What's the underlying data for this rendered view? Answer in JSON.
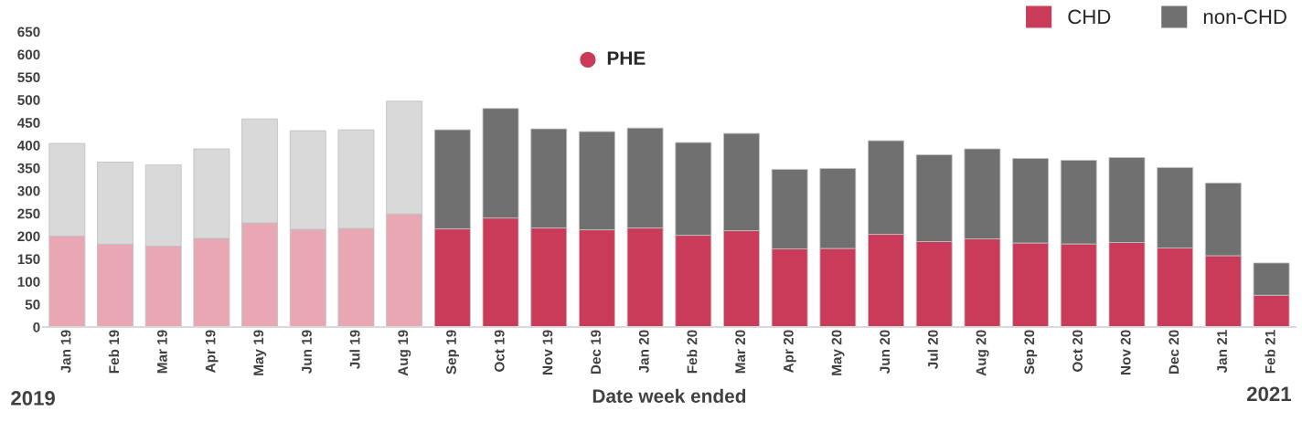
{
  "chart_data": {
    "type": "bar",
    "stacked": true,
    "xlabel": "Date week ended",
    "categories": [
      "Jan 19",
      "Feb 19",
      "Mar 19",
      "Apr 19",
      "May 19",
      "Jun 19",
      "Jul 19",
      "Aug 19",
      "Sep 19",
      "Oct 19",
      "Nov 19",
      "Dec 19",
      "Jan 20",
      "Feb 20",
      "Mar 20",
      "Apr 20",
      "May 20",
      "Jun 20",
      "Jul 20",
      "Aug 20",
      "Sep 20",
      "Oct 20",
      "Nov 20",
      "Dec 20",
      "Jan 21",
      "Feb 21"
    ],
    "series": [
      {
        "name": "CHD",
        "color": "#c93b58",
        "colors": [
          "#e8a7b2",
          "#e8a7b2",
          "#e8a7b2",
          "#e8a7b2",
          "#e8a7b2",
          "#e8a7b2",
          "#e8a7b2",
          "#e8a7b2",
          "#c93b58",
          "#c93b58",
          "#c93b58",
          "#c93b58",
          "#c93b58",
          "#c93b58",
          "#c93b58",
          "#c93b58",
          "#c93b58",
          "#c93b58",
          "#c93b58",
          "#c93b58",
          "#c93b58",
          "#c93b58",
          "#c93b58",
          "#c93b58",
          "#c93b58",
          "#c93b58"
        ],
        "values": [
          200,
          182,
          178,
          195,
          229,
          215,
          217,
          249,
          216,
          240,
          218,
          214,
          218,
          202,
          212,
          172,
          173,
          204,
          188,
          194,
          185,
          183,
          186,
          174,
          157,
          70
        ]
      },
      {
        "name": "non-CHD",
        "color": "#707070",
        "colors": [
          "#d9d9d9",
          "#d9d9d9",
          "#d9d9d9",
          "#d9d9d9",
          "#d9d9d9",
          "#d9d9d9",
          "#d9d9d9",
          "#d9d9d9",
          "#707070",
          "#707070",
          "#707070",
          "#707070",
          "#707070",
          "#707070",
          "#707070",
          "#707070",
          "#707070",
          "#707070",
          "#707070",
          "#707070",
          "#707070",
          "#707070",
          "#707070",
          "#707070",
          "#707070",
          "#707070"
        ],
        "values": [
          204,
          181,
          179,
          197,
          229,
          217,
          217,
          248,
          218,
          241,
          218,
          216,
          220,
          204,
          214,
          175,
          176,
          206,
          191,
          198,
          186,
          184,
          187,
          177,
          160,
          71
        ]
      }
    ],
    "ylim": [
      0,
      650
    ],
    "yticks": [
      0,
      50,
      100,
      150,
      200,
      250,
      300,
      350,
      400,
      450,
      500,
      550,
      600,
      650
    ],
    "legend": "top right",
    "grid": false,
    "annotations": [
      "PHE",
      "2019",
      "2021"
    ]
  }
}
